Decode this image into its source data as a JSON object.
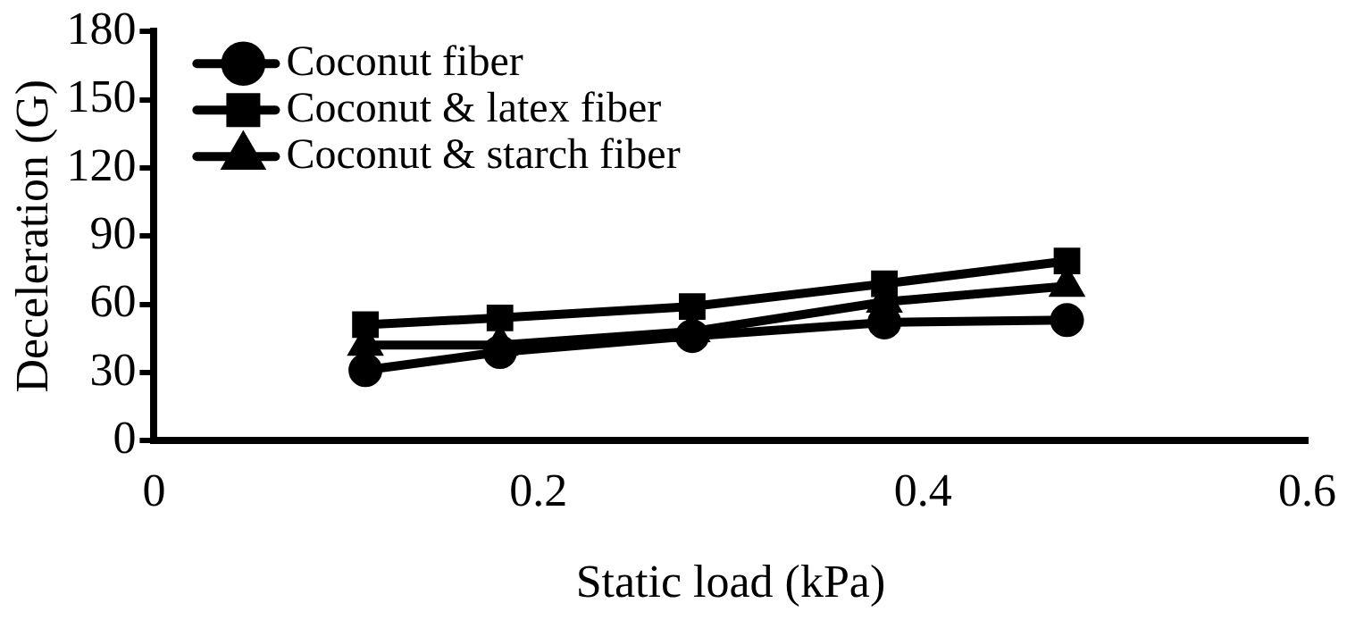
{
  "chart_data": {
    "type": "line",
    "xlabel": "Static load (kPa)",
    "ylabel": "Deceleration (G)",
    "x": [
      0.11,
      0.18,
      0.28,
      0.38,
      0.475
    ],
    "xlim": [
      0,
      0.6
    ],
    "xticks": [
      0,
      0.2,
      0.4,
      0.6
    ],
    "ylim": [
      0,
      180
    ],
    "yticks": [
      0,
      30,
      60,
      90,
      120,
      150,
      180
    ],
    "grid": false,
    "legend": "top left",
    "series": [
      {
        "name": "Coconut fiber",
        "color": "#000000",
        "marker": "circle",
        "values": [
          31,
          39,
          46,
          52,
          53
        ]
      },
      {
        "name": "Coconut & latex fiber",
        "color": "#000000",
        "marker": "square",
        "values": [
          51,
          54,
          59,
          69,
          79
        ]
      },
      {
        "name": "Coconut & starch fiber",
        "color": "#000000",
        "marker": "triangle",
        "values": [
          42,
          42,
          48,
          61,
          68
        ]
      }
    ]
  }
}
